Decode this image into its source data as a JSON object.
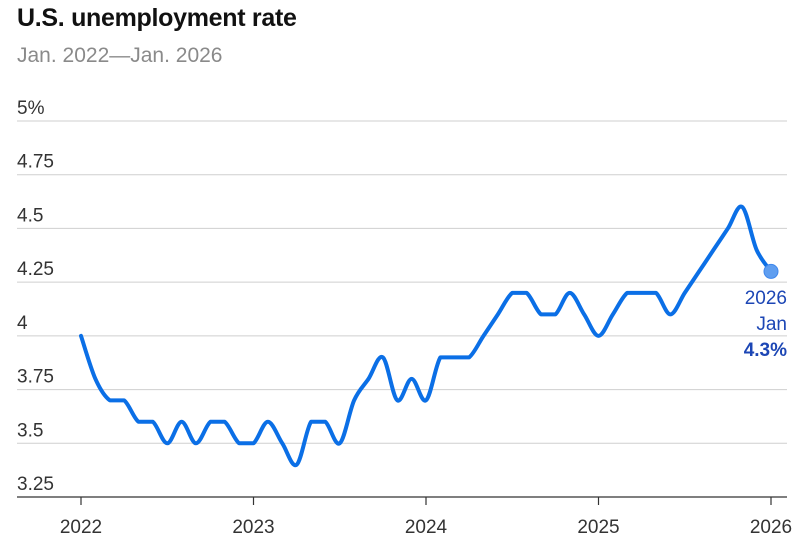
{
  "chart_data": {
    "type": "line",
    "title": "U.S. unemployment rate",
    "subtitle": "Jan. 2022—Jan. 2026",
    "xlabel": "",
    "ylabel": "",
    "ylim": [
      3.25,
      5
    ],
    "y_ticks": [
      {
        "value": 5,
        "label": "5%"
      },
      {
        "value": 4.75,
        "label": "4.75"
      },
      {
        "value": 4.5,
        "label": "4.5"
      },
      {
        "value": 4.25,
        "label": "4.25"
      },
      {
        "value": 4,
        "label": "4"
      },
      {
        "value": 3.75,
        "label": "3.75"
      },
      {
        "value": 3.5,
        "label": "3.5"
      },
      {
        "value": 3.25,
        "label": "3.25"
      }
    ],
    "x_ticks": [
      {
        "month_index": 0,
        "label": "2022"
      },
      {
        "month_index": 12,
        "label": "2023"
      },
      {
        "month_index": 24,
        "label": "2024"
      },
      {
        "month_index": 36,
        "label": "2025"
      },
      {
        "month_index": 48,
        "label": "2026"
      }
    ],
    "grid": true,
    "series": [
      {
        "name": "Unemployment rate",
        "color": "#0b6fe6",
        "values": [
          4.0,
          3.8,
          3.7,
          3.7,
          3.6,
          3.6,
          3.5,
          3.6,
          3.5,
          3.6,
          3.6,
          3.5,
          3.5,
          3.6,
          3.5,
          3.4,
          3.6,
          3.6,
          3.5,
          3.7,
          3.8,
          3.9,
          3.7,
          3.8,
          3.7,
          3.9,
          3.9,
          3.9,
          4.0,
          4.1,
          4.2,
          4.2,
          4.1,
          4.1,
          4.2,
          4.1,
          4.0,
          4.1,
          4.2,
          4.2,
          4.2,
          4.1,
          4.2,
          4.3,
          4.4,
          4.5,
          4.6,
          4.4,
          4.3
        ]
      }
    ],
    "annotation": {
      "year": "2026",
      "month": "Jan",
      "value": "4.3%",
      "color": "#1c46b5"
    }
  }
}
